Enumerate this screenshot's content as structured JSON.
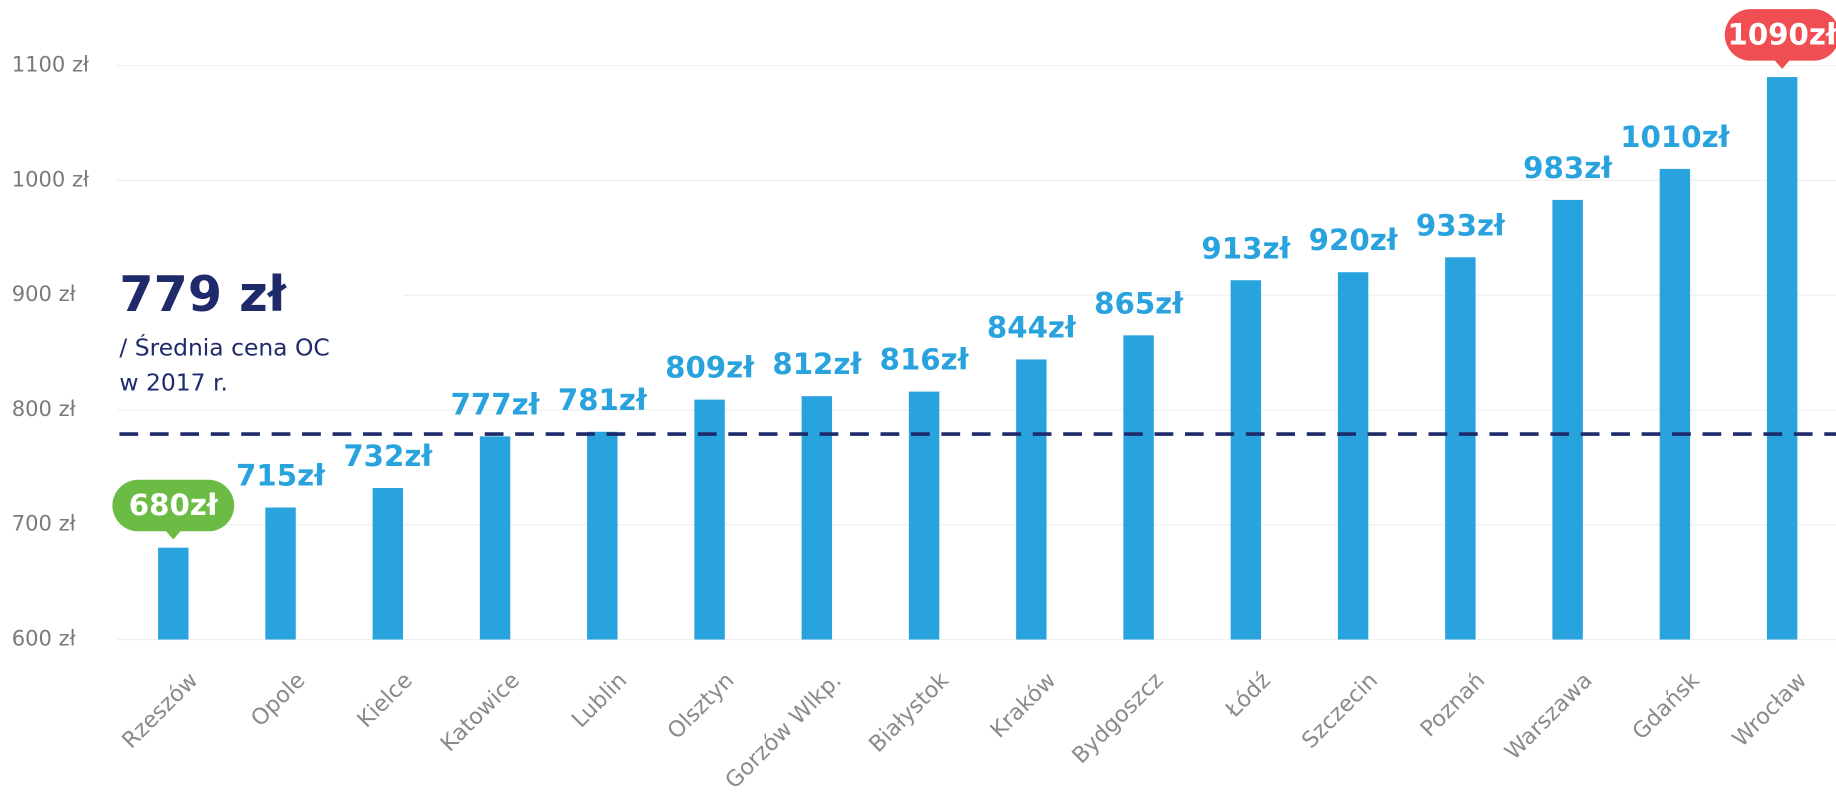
{
  "chart_data": {
    "type": "bar",
    "categories": [
      "Rzeszów",
      "Opole",
      "Kielce",
      "Katowice",
      "Lublin",
      "Olsztyn",
      "Gorzów Wlkp.",
      "Białystok",
      "Kraków",
      "Bydgoszcz",
      "Łódź",
      "Szczecin",
      "Poznań",
      "Warszawa",
      "Gdańsk",
      "Wrocław"
    ],
    "values": [
      680,
      715,
      732,
      777,
      781,
      809,
      812,
      816,
      844,
      865,
      913,
      920,
      933,
      983,
      1010,
      1090
    ],
    "value_labels": [
      "680zł",
      "715zł",
      "732zł",
      "777zł",
      "781zł",
      "809zł",
      "812zł",
      "816zł",
      "844zł",
      "865zł",
      "913zł",
      "920zł",
      "933zł",
      "983zł",
      "1010zł",
      "1090zł"
    ],
    "color": "#29a3de",
    "min_color": "#6cbb45",
    "max_color": "#f04e52",
    "ylim": [
      600,
      1100
    ],
    "yticks": [
      {
        "value": 600,
        "label": "600 zł"
      },
      {
        "value": 700,
        "label": "700 zł"
      },
      {
        "value": 800,
        "label": "800 zł"
      },
      {
        "value": 900,
        "label": "900 zł"
      },
      {
        "value": 1000,
        "label": "1000 zł"
      },
      {
        "value": 1100,
        "label": "1100 zł"
      }
    ],
    "grid": true,
    "average": {
      "value": 779,
      "label": "779 zł",
      "text": [
        "/  Średnia cena OC",
        "w 2017 r."
      ],
      "color": "#1f2a6b"
    }
  }
}
